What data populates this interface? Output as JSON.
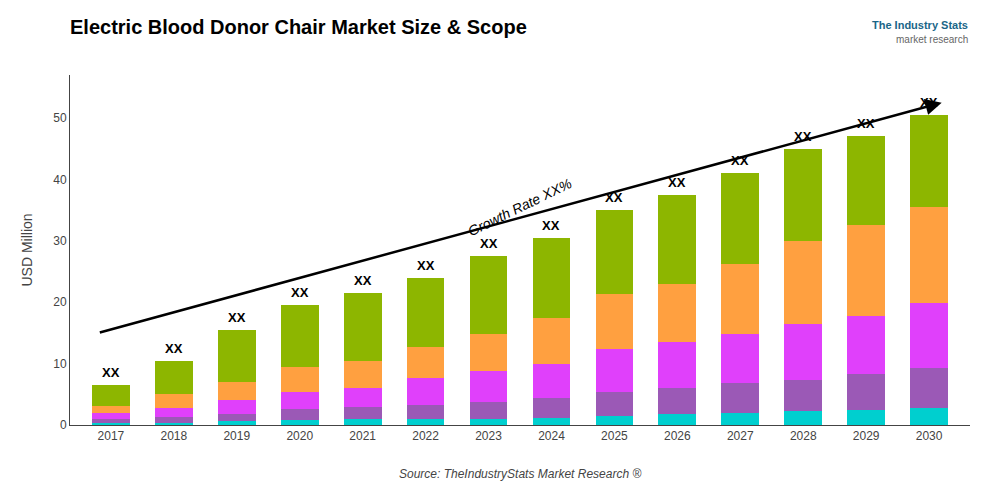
{
  "chart_data": {
    "type": "bar",
    "stacked": true,
    "title": "Electric Blood Donor Chair Market Size & Scope",
    "ylabel": "USD Million",
    "x": [
      2017,
      2018,
      2019,
      2020,
      2021,
      2022,
      2023,
      2024,
      2025,
      2026,
      2027,
      2028,
      2029,
      2030
    ],
    "xlim": [
      2016.35,
      2030.65
    ],
    "xticks": [
      2017,
      2018,
      2019,
      2020,
      2021,
      2022,
      2023,
      2024,
      2025,
      2026,
      2027,
      2028,
      2029,
      2030
    ],
    "ylim": [
      0,
      57
    ],
    "yticks": [
      0,
      10,
      20,
      30,
      40,
      50
    ],
    "grid": false,
    "series": [
      {
        "color": "#00CFCF",
        "values": [
          0.3,
          0.4,
          0.6,
          0.8,
          0.9,
          1.0,
          1.0,
          1.2,
          1.5,
          1.8,
          2.0,
          2.2,
          2.5,
          2.8
        ]
      },
      {
        "color": "#9B59B6",
        "values": [
          0.6,
          0.9,
          1.2,
          1.8,
          2.0,
          2.2,
          2.8,
          3.2,
          3.8,
          4.2,
          4.8,
          5.2,
          5.8,
          6.5
        ]
      },
      {
        "color": "#E040FB",
        "values": [
          1.0,
          1.5,
          2.2,
          2.8,
          3.2,
          4.5,
          5.0,
          5.5,
          7.0,
          7.5,
          8.0,
          9.0,
          9.5,
          10.5
        ]
      },
      {
        "color": "#FFA040",
        "values": [
          1.2,
          2.2,
          3.0,
          4.0,
          4.4,
          5.0,
          6.0,
          7.5,
          9.0,
          9.5,
          11.5,
          13.5,
          14.7,
          15.7
        ]
      },
      {
        "color": "#8DB600",
        "values": [
          3.4,
          5.5,
          8.5,
          10.1,
          11.0,
          11.3,
          12.7,
          13.1,
          13.7,
          14.5,
          14.7,
          15.1,
          14.5,
          15.0
        ]
      }
    ],
    "totals": [
      6.5,
      10.5,
      15.5,
      19.5,
      21.5,
      24.0,
      27.5,
      30.5,
      35.0,
      37.5,
      41.0,
      45.0,
      47.0,
      50.5
    ],
    "total_labels": [
      "XX",
      "XX",
      "XX",
      "XX",
      "XX",
      "XX",
      "XX",
      "XX",
      "XX",
      "XX",
      "XX",
      "XX",
      "XX",
      "XX"
    ],
    "arrow": {
      "x": [
        2016.8,
        2030.2
      ],
      "y": [
        15.0,
        52.5
      ]
    },
    "growth_label": {
      "text": "Growth Rate XX%",
      "x": 2023.5,
      "y": 35.5
    },
    "source": "Source: TheIndustryStats Market Research ®",
    "logo": [
      "The Industry Stats",
      "market research"
    ]
  }
}
